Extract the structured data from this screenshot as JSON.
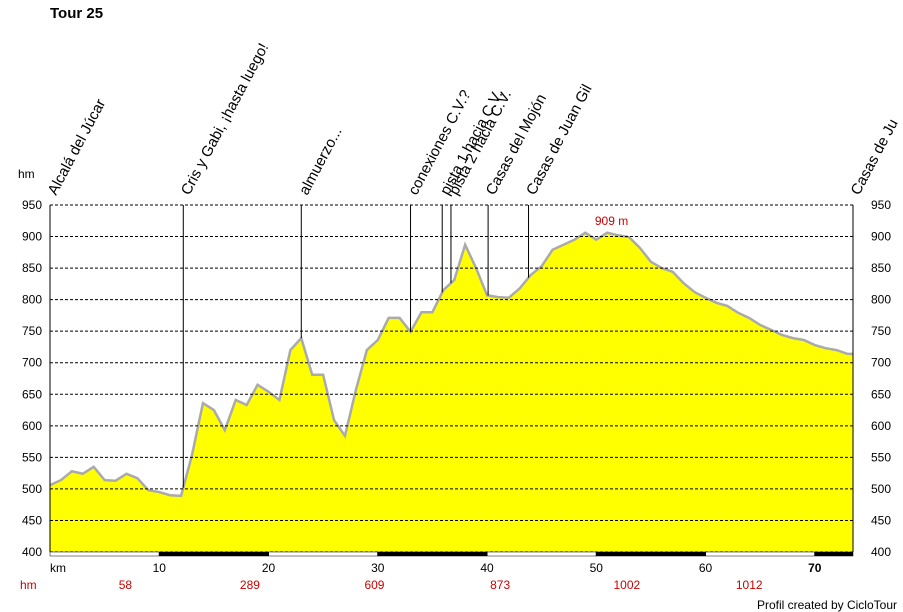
{
  "chart_data": {
    "type": "area",
    "title": "Tour 25",
    "y_label": "hm",
    "x_label": "km",
    "color": "#ffff00",
    "line_color": "#aaaaaa",
    "grid": true,
    "xlim": [
      0,
      73.5
    ],
    "ylim": [
      400,
      950
    ],
    "xticks": [
      10,
      20,
      30,
      40,
      50,
      60,
      70
    ],
    "yticks": [
      400,
      450,
      500,
      550,
      600,
      650,
      700,
      750,
      800,
      850,
      900,
      950
    ],
    "x": [
      0,
      1,
      2,
      3,
      4,
      5,
      6,
      7,
      8,
      9,
      10,
      11,
      12,
      13,
      14,
      15,
      16,
      17,
      18,
      19,
      20,
      21,
      22,
      23,
      24,
      25,
      26,
      27,
      28,
      29,
      30,
      31,
      32,
      33,
      34,
      35,
      36,
      37,
      38,
      39,
      40,
      41,
      42,
      43,
      44,
      45,
      46,
      47,
      48,
      49,
      50,
      51,
      52,
      53,
      54,
      55,
      56,
      57,
      58,
      59,
      60,
      61,
      62,
      63,
      64,
      65,
      66,
      67,
      68,
      69,
      70,
      71,
      72,
      73,
      73.5
    ],
    "values": [
      506,
      514,
      528,
      524,
      535,
      514,
      513,
      524,
      517,
      498,
      495,
      490,
      489,
      554,
      636,
      625,
      593,
      641,
      633,
      665,
      654,
      641,
      720,
      739,
      681,
      681,
      609,
      584,
      657,
      720,
      736,
      771,
      771,
      749,
      780,
      780,
      815,
      831,
      887,
      850,
      807,
      804,
      803,
      818,
      839,
      853,
      879,
      887,
      895,
      906,
      895,
      906,
      902,
      899,
      882,
      860,
      850,
      844,
      826,
      812,
      803,
      795,
      790,
      779,
      771,
      760,
      752,
      744,
      739,
      736,
      728,
      723,
      720,
      714,
      714
    ],
    "waypoints": [
      {
        "name": "Alcalá del Júcar",
        "km": 0
      },
      {
        "name": "Cris y Gabi, ¡hasta luego!",
        "km": 12.2
      },
      {
        "name": "almuerzo...",
        "km": 23.0
      },
      {
        "name": "conexiones C.V.?",
        "km": 33.0
      },
      {
        "name": "pista 1 hacia C.V.",
        "km": 35.9
      },
      {
        "name": "pista 2 hacia C.V.",
        "km": 36.7
      },
      {
        "name": "Casas del Mojón",
        "km": 40.1
      },
      {
        "name": "Casas de Juan Gil",
        "km": 43.8
      },
      {
        "name": "Casas de Ju",
        "km": 73.5
      }
    ],
    "max_annotation": {
      "label": "909 m",
      "x": 51.4
    },
    "hm_label": "hm",
    "hm_markers": [
      {
        "km": 6.9,
        "value": 58
      },
      {
        "km": 18.3,
        "value": 289
      },
      {
        "km": 29.7,
        "value": 609
      },
      {
        "km": 41.2,
        "value": 873
      },
      {
        "km": 52.8,
        "value": 1002
      },
      {
        "km": 64.0,
        "value": 1012
      }
    ],
    "footer": "Profil created by CicloTour"
  }
}
